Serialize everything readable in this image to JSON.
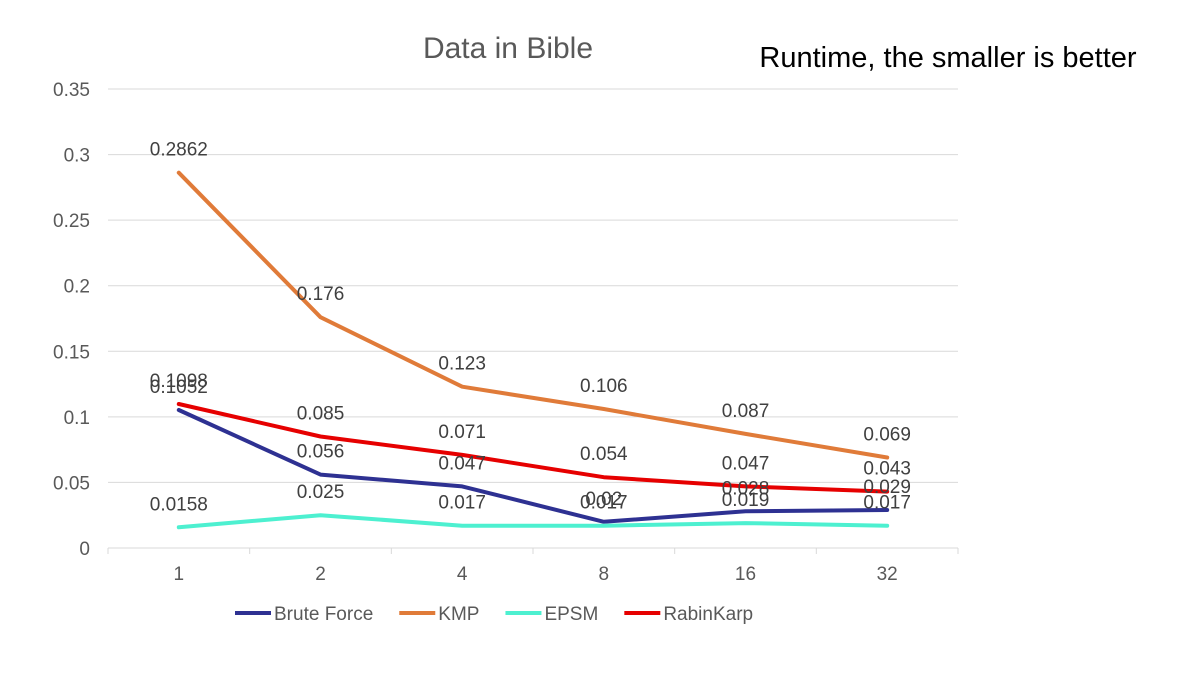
{
  "note": "Runtime, the smaller is better",
  "chart_data": {
    "type": "line",
    "title": "Data in Bible",
    "xlabel": "",
    "ylabel": "",
    "categories": [
      "1",
      "2",
      "4",
      "8",
      "16",
      "32"
    ],
    "ylim": [
      0,
      0.35
    ],
    "yticks": [
      "0",
      "0.05",
      "0.1",
      "0.15",
      "0.2",
      "0.25",
      "0.3",
      "0.35"
    ],
    "grid": true,
    "legend_position": "bottom",
    "series": [
      {
        "name": "Brute Force",
        "color": "#2e3192",
        "values": [
          0.1052,
          0.056,
          0.047,
          0.02,
          0.028,
          0.029
        ],
        "labels": [
          "0.1052",
          "0.056",
          "0.047",
          "0.02",
          "0.028",
          "0.029"
        ]
      },
      {
        "name": "KMP",
        "color": "#e07b39",
        "values": [
          0.2862,
          0.176,
          0.123,
          0.106,
          0.087,
          0.069
        ],
        "labels": [
          "0.2862",
          "0.176",
          "0.123",
          "0.106",
          "0.087",
          "0.069"
        ]
      },
      {
        "name": "EPSM",
        "color": "#4df0d0",
        "values": [
          0.0158,
          0.025,
          0.017,
          0.017,
          0.019,
          0.017
        ],
        "labels": [
          "0.0158",
          "0.025",
          "0.017",
          "0.017",
          "0.019",
          "0.017"
        ]
      },
      {
        "name": "RabinKarp",
        "color": "#e60000",
        "values": [
          0.1098,
          0.085,
          0.071,
          0.054,
          0.047,
          0.043
        ],
        "labels": [
          "0.1098",
          "0.085",
          "0.071",
          "0.054",
          "0.047",
          "0.043"
        ]
      }
    ]
  }
}
